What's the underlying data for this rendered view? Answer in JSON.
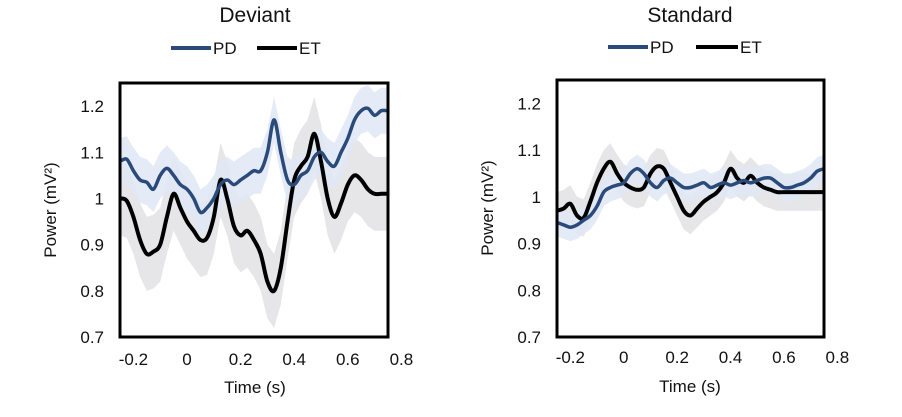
{
  "chart_data": [
    {
      "type": "line",
      "title": "Deviant",
      "xlabel": "Time (s)",
      "ylabel": "Power (mV²)",
      "xlim": [
        -0.25,
        0.75
      ],
      "ylim": [
        0.7,
        1.25
      ],
      "xticks": [
        "-0.2",
        "0",
        "0.2",
        "0.4",
        "0.6",
        "0.8"
      ],
      "xtick_values": [
        -0.2,
        0,
        0.2,
        0.4,
        0.6,
        0.8
      ],
      "yticks": [
        "0.7",
        "0.8",
        "0.9",
        "1",
        "1.1",
        "1.2"
      ],
      "ytick_values": [
        0.7,
        0.8,
        0.9,
        1.0,
        1.1,
        1.2
      ],
      "legend": "top-center",
      "x": [
        -0.25,
        -0.225,
        -0.2,
        -0.175,
        -0.15,
        -0.125,
        -0.1,
        -0.075,
        -0.05,
        -0.025,
        0,
        0.025,
        0.05,
        0.075,
        0.1,
        0.125,
        0.15,
        0.175,
        0.2,
        0.225,
        0.25,
        0.275,
        0.3,
        0.325,
        0.35,
        0.375,
        0.4,
        0.425,
        0.45,
        0.475,
        0.5,
        0.525,
        0.55,
        0.575,
        0.6,
        0.625,
        0.65,
        0.675,
        0.7,
        0.725,
        0.75
      ],
      "series": [
        {
          "name": "PD",
          "color": "#2a4a7a",
          "band_color": "#dfe8f4",
          "values": [
            1.08,
            1.085,
            1.06,
            1.04,
            1.035,
            1.02,
            1.05,
            1.065,
            1.05,
            1.03,
            1.02,
            1.0,
            0.97,
            0.98,
            1.0,
            1.03,
            1.04,
            1.03,
            1.04,
            1.05,
            1.06,
            1.06,
            1.1,
            1.17,
            1.1,
            1.04,
            1.03,
            1.05,
            1.06,
            1.09,
            1.1,
            1.08,
            1.07,
            1.1,
            1.13,
            1.17,
            1.19,
            1.195,
            1.18,
            1.19,
            1.19
          ],
          "err": 0.05
        },
        {
          "name": "ET",
          "color": "#000000",
          "band_color": "#e2e2e4",
          "values": [
            1.0,
            0.995,
            0.96,
            0.91,
            0.88,
            0.885,
            0.9,
            0.96,
            1.01,
            0.98,
            0.95,
            0.93,
            0.91,
            0.915,
            0.96,
            1.04,
            1.0,
            0.94,
            0.92,
            0.93,
            0.91,
            0.88,
            0.82,
            0.8,
            0.85,
            0.95,
            1.04,
            1.07,
            1.09,
            1.14,
            1.08,
            1.0,
            0.96,
            0.99,
            1.03,
            1.05,
            1.04,
            1.02,
            1.01,
            1.01,
            1.01
          ],
          "err": 0.08
        }
      ]
    },
    {
      "type": "line",
      "title": "Standard",
      "xlabel": "Time (s)",
      "ylabel": "Power (mV²)",
      "xlim": [
        -0.25,
        0.75
      ],
      "ylim": [
        0.7,
        1.25
      ],
      "xticks": [
        "-0.2",
        "0",
        "0.2",
        "0.4",
        "0.6",
        "0.8"
      ],
      "xtick_values": [
        -0.2,
        0,
        0.2,
        0.4,
        0.6,
        0.8
      ],
      "yticks": [
        "0.7",
        "0.8",
        "0.9",
        "1",
        "1.1",
        "1.2"
      ],
      "ytick_values": [
        0.7,
        0.8,
        0.9,
        1.0,
        1.1,
        1.2
      ],
      "legend": "top-center",
      "x": [
        -0.25,
        -0.225,
        -0.2,
        -0.175,
        -0.15,
        -0.125,
        -0.1,
        -0.075,
        -0.05,
        -0.025,
        0,
        0.025,
        0.05,
        0.075,
        0.1,
        0.125,
        0.15,
        0.175,
        0.2,
        0.225,
        0.25,
        0.275,
        0.3,
        0.325,
        0.35,
        0.375,
        0.4,
        0.425,
        0.45,
        0.475,
        0.5,
        0.525,
        0.55,
        0.575,
        0.6,
        0.625,
        0.65,
        0.675,
        0.7,
        0.725,
        0.75
      ],
      "series": [
        {
          "name": "PD",
          "color": "#2a4a7a",
          "band_color": "#dfe8f4",
          "values": [
            0.945,
            0.94,
            0.935,
            0.94,
            0.95,
            0.96,
            0.98,
            1.01,
            1.02,
            1.025,
            1.03,
            1.05,
            1.06,
            1.05,
            1.03,
            1.02,
            1.035,
            1.04,
            1.03,
            1.02,
            1.02,
            1.025,
            1.03,
            1.02,
            1.025,
            1.03,
            1.025,
            1.03,
            1.035,
            1.03,
            1.035,
            1.04,
            1.04,
            1.03,
            1.02,
            1.02,
            1.025,
            1.03,
            1.04,
            1.055,
            1.06
          ],
          "err": 0.03
        },
        {
          "name": "ET",
          "color": "#000000",
          "band_color": "#e2e2e4",
          "values": [
            0.97,
            0.975,
            0.985,
            0.96,
            0.955,
            0.99,
            1.03,
            1.06,
            1.075,
            1.05,
            1.03,
            1.02,
            1.015,
            1.02,
            1.05,
            1.065,
            1.06,
            1.03,
            1.0,
            0.97,
            0.96,
            0.975,
            0.99,
            1.0,
            1.01,
            1.03,
            1.06,
            1.04,
            1.03,
            1.045,
            1.03,
            1.02,
            1.015,
            1.01,
            1.01,
            1.01,
            1.01,
            1.01,
            1.01,
            1.01,
            1.01
          ],
          "err": 0.04
        }
      ]
    }
  ]
}
